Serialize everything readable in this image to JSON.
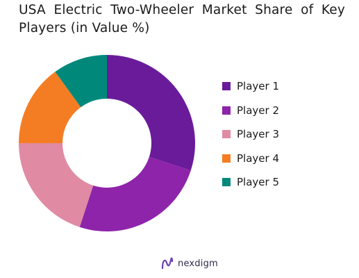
{
  "chart_data": {
    "type": "pie",
    "title": "USA Electric Two-Wheeler Market Share of Key Players (in Value %)",
    "categories": [
      "Player 1",
      "Player 2",
      "Player 3",
      "Player 4",
      "Player 5"
    ],
    "values": [
      30,
      25,
      20,
      15,
      10
    ],
    "colors": [
      "#6a1b9a",
      "#8e24aa",
      "#e08aa3",
      "#f47d23",
      "#00897b"
    ],
    "donut": true,
    "legend_position": "right"
  },
  "branding": {
    "logo_text": "nexdigm",
    "logo_icon": "nexdigm-wave-icon"
  }
}
